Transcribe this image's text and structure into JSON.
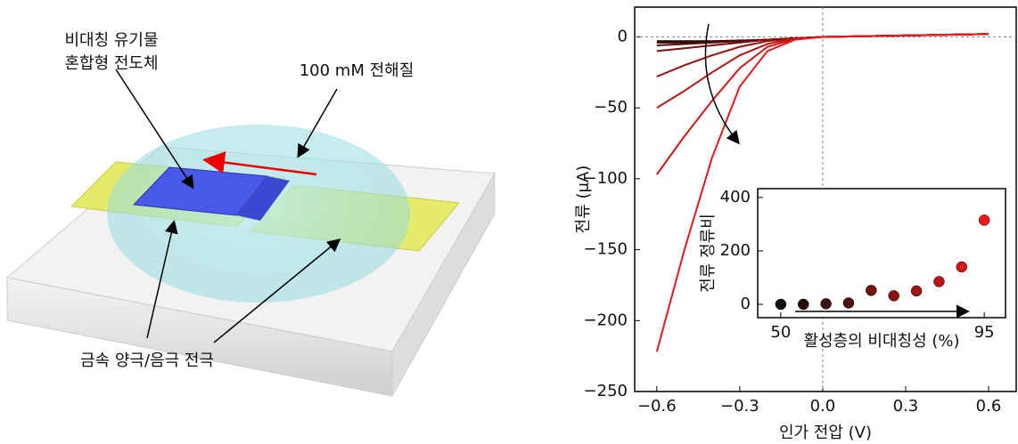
{
  "diagram": {
    "label_osc": [
      "비대칭 유기물",
      "혼합형 전도체"
    ],
    "label_electrolyte": "100 mM 전해질",
    "label_electrode": "금속 양극/음극 전극"
  },
  "chart_data": [
    {
      "type": "line",
      "xlabel": "인가 전압 (V)",
      "ylabel": "전류 (μA)",
      "x": [
        -0.6,
        -0.5,
        -0.4,
        -0.3,
        -0.2,
        -0.1,
        0,
        0.3,
        0.6
      ],
      "series": [
        {
          "color": "#1a0808",
          "values": [
            -3,
            -3,
            -3,
            -2.5,
            -2,
            -1,
            0,
            1,
            2
          ]
        },
        {
          "color": "#3a0a0a",
          "values": [
            -4,
            -4,
            -3.5,
            -3,
            -2,
            -1,
            0,
            1,
            2
          ]
        },
        {
          "color": "#5a0c0c",
          "values": [
            -6,
            -5,
            -4,
            -3,
            -2,
            -1,
            0,
            1,
            2
          ]
        },
        {
          "color": "#7a0e0e",
          "values": [
            -10,
            -8,
            -6,
            -4,
            -2,
            -1,
            0,
            1,
            2
          ]
        },
        {
          "color": "#9a1010",
          "values": [
            -28,
            -20,
            -13,
            -7,
            -3,
            -1,
            0,
            1,
            2
          ]
        },
        {
          "color": "#b81212",
          "values": [
            -50,
            -38,
            -25,
            -13,
            -5,
            -1,
            0,
            1,
            2
          ]
        },
        {
          "color": "#d41414",
          "values": [
            -97,
            -70,
            -45,
            -22,
            -7,
            -1.5,
            0,
            1,
            2
          ]
        },
        {
          "color": "#e81818",
          "values": [
            -222,
            -150,
            -85,
            -35,
            -10,
            -2,
            0,
            1,
            2
          ]
        }
      ],
      "xlim": [
        -0.68,
        0.7
      ],
      "ylim": [
        -250,
        21
      ],
      "xticks": [
        {
          "value": -0.6,
          "label": "−0.6"
        },
        {
          "value": -0.3,
          "label": "−0.3"
        },
        {
          "value": 0,
          "label": "0.0"
        },
        0.3,
        0.6
      ],
      "yticks": [
        0,
        {
          "value": -50,
          "label": "−50"
        },
        {
          "value": -100,
          "label": "−100"
        },
        {
          "value": -150,
          "label": "−150"
        },
        {
          "value": -200,
          "label": "−200"
        },
        {
          "value": -250,
          "label": "−250"
        }
      ],
      "zero_lines": true
    },
    {
      "type": "scatter",
      "xlabel": "활성층의 비대칭성 (%)",
      "ylabel": "전류 정류비",
      "x": [
        50,
        55,
        60,
        65,
        70,
        75,
        80,
        85,
        90,
        95
      ],
      "values": [
        0,
        0,
        2,
        5,
        52,
        32,
        50,
        85,
        140,
        315
      ],
      "colors": [
        "#111111",
        "#2a0b0b",
        "#3e0d0d",
        "#520f0f",
        "#741010",
        "#8c1212",
        "#a41313",
        "#bc1515",
        "#d41717",
        "#ee1a1a"
      ],
      "xlim": [
        44.9,
        99.7
      ],
      "ylim": [
        -50,
        433
      ],
      "xticks": [
        50,
        95
      ],
      "yticks": [
        0,
        200,
        400
      ]
    }
  ]
}
